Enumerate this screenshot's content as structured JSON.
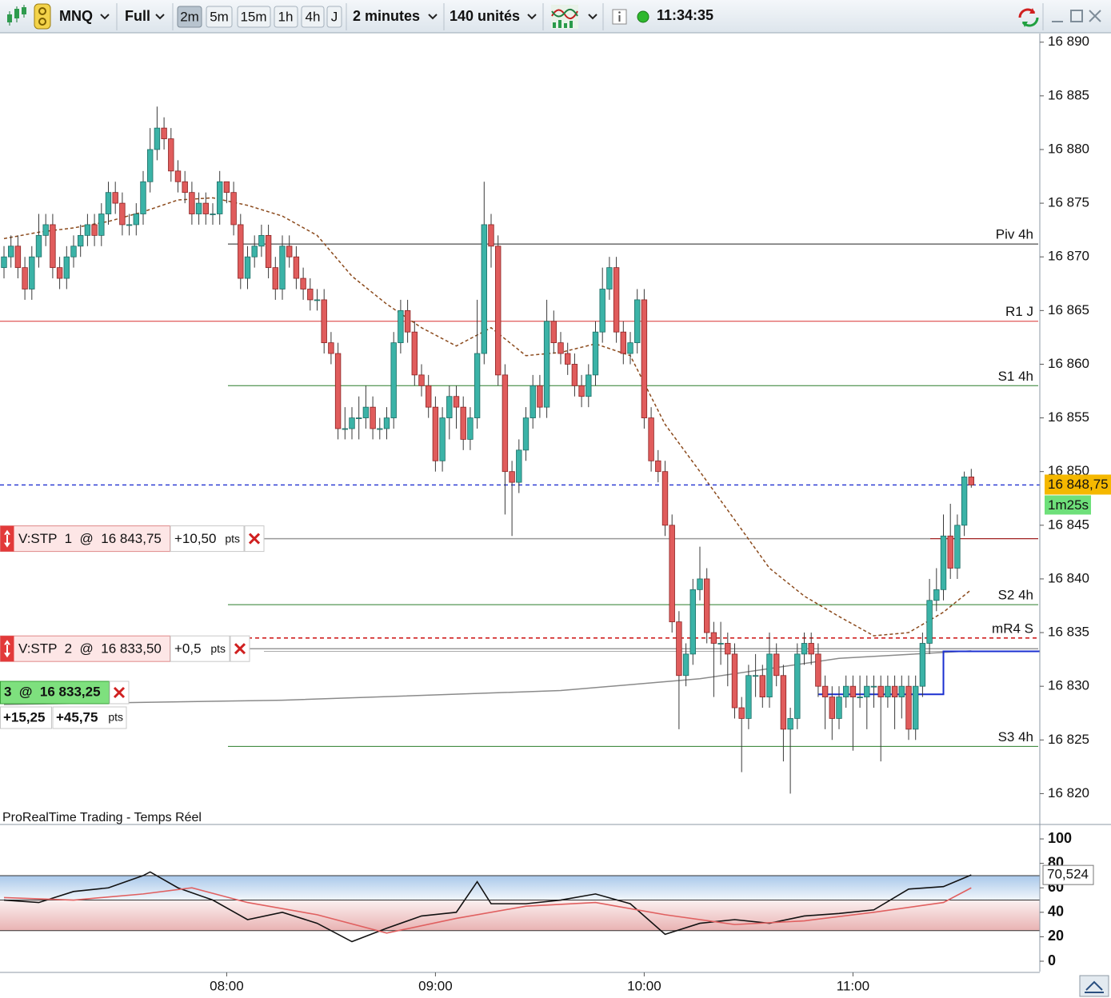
{
  "toolbar": {
    "symbol": "MNQ",
    "view": "Full",
    "timeframes": [
      "2m",
      "5m",
      "15m",
      "1h",
      "4h",
      "J"
    ],
    "period": "2 minutes",
    "units": "140 unités",
    "clock": "11:34:35"
  },
  "source": "ProRealTime Trading - Temps Réel",
  "chart_data": {
    "type": "candlestick",
    "categories": [
      null,
      null,
      null,
      null,
      null,
      null,
      null,
      null,
      null,
      null,
      null,
      null,
      null,
      null,
      null,
      null,
      null,
      null,
      null,
      null,
      null,
      null,
      null,
      null,
      null,
      null,
      null,
      null,
      null,
      null,
      null,
      null,
      "08:00",
      null,
      null,
      null,
      null,
      null,
      null,
      null,
      null,
      null,
      null,
      null,
      null,
      null,
      null,
      null,
      null,
      null,
      null,
      null,
      null,
      null,
      null,
      null,
      null,
      null,
      null,
      null,
      null,
      null,
      "09:00",
      null,
      null,
      null,
      null,
      null,
      null,
      null,
      null,
      null,
      null,
      null,
      null,
      null,
      null,
      null,
      null,
      null,
      null,
      null,
      null,
      null,
      null,
      null,
      null,
      null,
      null,
      null,
      null,
      null,
      "10:00",
      null,
      null,
      null,
      null,
      null,
      null,
      null,
      null,
      null,
      null,
      null,
      null,
      null,
      null,
      null,
      null,
      null,
      null,
      null,
      null,
      null,
      null,
      null,
      null,
      null,
      null,
      null,
      null,
      null,
      "11:00",
      null,
      null,
      null,
      null,
      null,
      null,
      null,
      null,
      null,
      null,
      null,
      null,
      null,
      null,
      null,
      null,
      null
    ],
    "ohlc": [
      [
        16869,
        16871,
        16868,
        16870
      ],
      [
        16870,
        16872,
        16869,
        16871
      ],
      [
        16871,
        16872,
        16868,
        16869
      ],
      [
        16869,
        16870,
        16866,
        16867
      ],
      [
        16867,
        16871,
        16866,
        16870
      ],
      [
        16870,
        16874,
        16869,
        16872
      ],
      [
        16872,
        16874,
        16871,
        16873
      ],
      [
        16873,
        16874,
        16868,
        16869
      ],
      [
        16869,
        16870,
        16867,
        16868
      ],
      [
        16868,
        16871,
        16867,
        16870
      ],
      [
        16870,
        16872,
        16869,
        16871
      ],
      [
        16871,
        16873,
        16870,
        16872
      ],
      [
        16872,
        16874,
        16871,
        16873
      ],
      [
        16873,
        16874,
        16871,
        16872
      ],
      [
        16872,
        16875,
        16871,
        16874
      ],
      [
        16874,
        16877,
        16873,
        16876
      ],
      [
        16876,
        16877,
        16874,
        16875
      ],
      [
        16875,
        16876,
        16872,
        16873
      ],
      [
        16873,
        16874,
        16872,
        16873
      ],
      [
        16873,
        16875,
        16872,
        16874
      ],
      [
        16874,
        16878,
        16873,
        16877
      ],
      [
        16877,
        16882,
        16876,
        16880
      ],
      [
        16880,
        16884,
        16879,
        16882
      ],
      [
        16882,
        16883,
        16880,
        16881
      ],
      [
        16881,
        16882,
        16877,
        16878
      ],
      [
        16878,
        16879,
        16876,
        16877
      ],
      [
        16877,
        16878,
        16875,
        16876
      ],
      [
        16876,
        16877,
        16873,
        16874
      ],
      [
        16874,
        16876,
        16873,
        16875
      ],
      [
        16875,
        16876,
        16873,
        16874
      ],
      [
        16874,
        16875,
        16873,
        16874
      ],
      [
        16874,
        16878,
        16873,
        16877
      ],
      [
        16877,
        16877,
        16875,
        16876
      ],
      [
        16876,
        16877,
        16872,
        16873
      ],
      [
        16873,
        16874,
        16867,
        16868
      ],
      [
        16868,
        16871,
        16867,
        16870
      ],
      [
        16870,
        16872,
        16869,
        16871
      ],
      [
        16871,
        16873,
        16870,
        16872
      ],
      [
        16872,
        16873,
        16868,
        16869
      ],
      [
        16869,
        16870,
        16866,
        16867
      ],
      [
        16867,
        16872,
        16866,
        16871
      ],
      [
        16871,
        16872,
        16869,
        16870
      ],
      [
        16870,
        16871,
        16867,
        16868
      ],
      [
        16868,
        16869,
        16866,
        16867
      ],
      [
        16867,
        16868,
        16865,
        16866
      ],
      [
        16866,
        16867,
        16865,
        16866
      ],
      [
        16866,
        16867,
        16861,
        16862
      ],
      [
        16862,
        16863,
        16860,
        16861
      ],
      [
        16861,
        16862,
        16853,
        16854
      ],
      [
        16854,
        16856,
        16853,
        16854
      ],
      [
        16854,
        16856,
        16853,
        16855
      ],
      [
        16855,
        16857,
        16853,
        16855
      ],
      [
        16855,
        16858,
        16854,
        16856
      ],
      [
        16856,
        16857,
        16853,
        16854
      ],
      [
        16854,
        16855,
        16853,
        16854
      ],
      [
        16854,
        16856,
        16853,
        16855
      ],
      [
        16855,
        16863,
        16854,
        16862
      ],
      [
        16862,
        16866,
        16861,
        16865
      ],
      [
        16865,
        16866,
        16862,
        16863
      ],
      [
        16863,
        16864,
        16858,
        16859
      ],
      [
        16859,
        16860,
        16857,
        16858
      ],
      [
        16858,
        16859,
        16855,
        16856
      ],
      [
        16856,
        16857,
        16850,
        16851
      ],
      [
        16851,
        16856,
        16850,
        16855
      ],
      [
        16855,
        16858,
        16853,
        16857
      ],
      [
        16857,
        16858,
        16854,
        16856
      ],
      [
        16856,
        16857,
        16852,
        16853
      ],
      [
        16853,
        16856,
        16852,
        16855
      ],
      [
        16855,
        16866,
        16854,
        16861
      ],
      [
        16861,
        16877,
        16860,
        16873
      ],
      [
        16873,
        16874,
        16869,
        16871
      ],
      [
        16871,
        16872,
        16858,
        16859
      ],
      [
        16859,
        16860,
        16846,
        16850
      ],
      [
        16850,
        16851,
        16844,
        16849
      ],
      [
        16849,
        16853,
        16848,
        16852
      ],
      [
        16852,
        16856,
        16851,
        16855
      ],
      [
        16855,
        16859,
        16854,
        16858
      ],
      [
        16858,
        16859,
        16855,
        16856
      ],
      [
        16856,
        16866,
        16855,
        16864
      ],
      [
        16864,
        16865,
        16861,
        16862
      ],
      [
        16862,
        16863,
        16860,
        16861
      ],
      [
        16861,
        16862,
        16859,
        16860
      ],
      [
        16860,
        16861,
        16857,
        16858
      ],
      [
        16858,
        16859,
        16856,
        16857
      ],
      [
        16857,
        16860,
        16856,
        16859
      ],
      [
        16859,
        16864,
        16858,
        16863
      ],
      [
        16863,
        16869,
        16862,
        16867
      ],
      [
        16867,
        16870,
        16866,
        16869
      ],
      [
        16869,
        16870,
        16862,
        16863
      ],
      [
        16863,
        16864,
        16860,
        16861
      ],
      [
        16861,
        16863,
        16860,
        16862
      ],
      [
        16862,
        16867,
        16861,
        16866
      ],
      [
        16866,
        16867,
        16854,
        16855
      ],
      [
        16855,
        16856,
        16850,
        16851
      ],
      [
        16851,
        16852,
        16849,
        16850
      ],
      [
        16850,
        16851,
        16844,
        16845
      ],
      [
        16845,
        16846,
        16835,
        16836
      ],
      [
        16836,
        16837,
        16826,
        16831
      ],
      [
        16831,
        16834,
        16830,
        16833
      ],
      [
        16833,
        16840,
        16832,
        16839
      ],
      [
        16839,
        16843,
        16838,
        16840
      ],
      [
        16840,
        16841,
        16834,
        16835
      ],
      [
        16835,
        16836,
        16829,
        16834
      ],
      [
        16834,
        16836,
        16832,
        16834
      ],
      [
        16834,
        16835,
        16830,
        16833
      ],
      [
        16833,
        16834,
        16827,
        16828
      ],
      [
        16828,
        16829,
        16822,
        16827
      ],
      [
        16827,
        16832,
        16826,
        16831
      ],
      [
        16831,
        16833,
        16829,
        16831
      ],
      [
        16831,
        16832,
        16828,
        16829
      ],
      [
        16829,
        16835,
        16828,
        16833
      ],
      [
        16833,
        16834,
        16830,
        16831
      ],
      [
        16831,
        16832,
        16823,
        16826
      ],
      [
        16826,
        16828,
        16820,
        16827
      ],
      [
        16827,
        16834,
        16826,
        16833
      ],
      [
        16833,
        16835,
        16832,
        16834
      ],
      [
        16834,
        16835,
        16832,
        16833
      ],
      [
        16833,
        16834,
        16829,
        16830
      ],
      [
        16830,
        16831,
        16826,
        16829
      ],
      [
        16829,
        16830,
        16825,
        16827
      ],
      [
        16827,
        16830,
        16826,
        16829
      ],
      [
        16829,
        16831,
        16828,
        16830
      ],
      [
        16830,
        16831,
        16824,
        16829
      ],
      [
        16829,
        16831,
        16828,
        16829
      ],
      [
        16829,
        16831,
        16826,
        16830
      ],
      [
        16830,
        16831,
        16828,
        16830
      ],
      [
        16830,
        16831,
        16823,
        16829
      ],
      [
        16829,
        16831,
        16828,
        16830
      ],
      [
        16830,
        16831,
        16826,
        16829
      ],
      [
        16829,
        16831,
        16827,
        16830
      ],
      [
        16830,
        16831,
        16825,
        16826
      ],
      [
        16826,
        16831,
        16825,
        16830
      ],
      [
        16830,
        16835,
        16829,
        16834
      ],
      [
        16834,
        16840,
        16833,
        16838
      ],
      [
        16838,
        16841,
        16837,
        16839
      ],
      [
        16839,
        16846,
        16838,
        16844
      ],
      [
        16844,
        16847,
        16840,
        16841
      ],
      [
        16841,
        16846,
        16840,
        16845
      ],
      [
        16845,
        16850,
        16844,
        16849.5
      ],
      [
        16849.5,
        16850.25,
        16848.5,
        16848.75
      ]
    ],
    "close_label": "16 848,75",
    "countdown": "1m25s",
    "up_color": "#3bb3a7",
    "down_color": "#e05c5c",
    "ylim": [
      16817.2,
      16890.8
    ],
    "yticks": [
      {
        "value": 16820,
        "label": "16 820"
      },
      {
        "value": 16825,
        "label": "16 825"
      },
      {
        "value": 16830,
        "label": "16 830"
      },
      {
        "value": 16835,
        "label": "16 835"
      },
      {
        "value": 16840,
        "label": "16 840"
      },
      {
        "value": 16845,
        "label": "16 845"
      },
      {
        "value": 16850,
        "label": "16 850"
      },
      {
        "value": 16855,
        "label": "16 855"
      },
      {
        "value": 16860,
        "label": "16 860"
      },
      {
        "value": 16865,
        "label": "16 865"
      },
      {
        "value": 16870,
        "label": "16 870"
      },
      {
        "value": 16875,
        "label": "16 875"
      },
      {
        "value": 16880,
        "label": "16 880"
      },
      {
        "value": 16885,
        "label": "16 885"
      },
      {
        "value": 16890,
        "label": "16 890"
      }
    ],
    "levels": [
      {
        "label": "Piv 4h",
        "value": 16871.2,
        "color": "#222222"
      },
      {
        "label": "R1 J",
        "value": 16864,
        "color": "#d83030"
      },
      {
        "label": "S1 4h",
        "value": 16858,
        "color": "#2a7d2a"
      },
      {
        "label": "S2 4h",
        "value": 16837.6,
        "color": "#2a7d2a"
      },
      {
        "label": "mR4 S",
        "value": 16834.5,
        "color": "#d02020",
        "dashed": true
      },
      {
        "label": "S3 4h",
        "value": 16824.4,
        "color": "#2a7d2a"
      }
    ],
    "lines": [
      {
        "color": "#8b4a1c",
        "dashed": true,
        "x": [
          0,
          5,
          10,
          15,
          20,
          25,
          30,
          35,
          40,
          45,
          50,
          55,
          60,
          65,
          70,
          75,
          80,
          85,
          90,
          95,
          100,
          105,
          110,
          115,
          120,
          125,
          130,
          135,
          139
        ],
        "values": [
          16871.7,
          16872.3,
          16872.7,
          16873.3,
          16874.2,
          16875.3,
          16875.5,
          16874.8,
          16873.8,
          16872,
          16868.2,
          16865.6,
          16863.4,
          16861.7,
          16863.4,
          16860.8,
          16861.1,
          16861.9,
          16860.8,
          16854.4,
          16850,
          16845.5,
          16841,
          16838.4,
          16836.5,
          16834.7,
          16835,
          16836.9,
          16839
        ]
      },
      {
        "color": "#8a8a8a",
        "x": [
          0,
          40,
          80,
          100,
          120,
          139
        ],
        "values": [
          16828.3,
          16828.7,
          16829.6,
          16830.7,
          16832.6,
          16833.3
        ]
      },
      {
        "color": "#1a2fd0",
        "x": [
          117,
          135,
          135,
          148.9
        ],
        "values": [
          16829.25,
          16829.25,
          16833.25,
          16833.25
        ]
      }
    ],
    "orders": [
      {
        "label": "V:STP  1  @  16 843,75",
        "price": 16843.75,
        "pnl": "+10,50",
        "unit": "pts"
      },
      {
        "label": "V:STP  2  @  16 833,50",
        "price": 16833.5,
        "pnl": "+0,5",
        "unit": "pts"
      }
    ],
    "position": {
      "label": "3  @  16 833,25",
      "price": 16833.25,
      "pnl": [
        "+15,25",
        "+45,75"
      ],
      "unit": "pts"
    },
    "rsi": {
      "ylim": [
        -8.5,
        110.5
      ],
      "yticks": [
        0,
        20,
        40,
        60,
        80,
        100
      ],
      "levels": [
        70,
        50,
        25
      ],
      "lines": [
        {
          "color": "#111111",
          "x": [
            0,
            5,
            10,
            15,
            20,
            21,
            25,
            30,
            35,
            40,
            45,
            50,
            55,
            60,
            65,
            68,
            70,
            75,
            80,
            85,
            90,
            95,
            100,
            105,
            110,
            115,
            120,
            125,
            130,
            135,
            139
          ],
          "values": [
            50,
            48,
            57,
            60,
            70,
            73,
            60,
            50,
            34,
            40,
            31,
            16,
            27,
            37,
            40,
            65,
            47,
            47,
            50,
            55,
            47,
            22,
            31,
            34,
            31,
            37,
            39,
            42,
            59,
            61,
            70.524
          ],
          "value_labels": [
            null,
            null,
            null,
            null,
            null,
            null,
            null,
            null,
            null,
            null,
            null,
            null,
            null,
            null,
            null,
            null,
            null,
            null,
            null,
            null,
            null,
            null,
            null,
            null,
            null,
            null,
            null,
            null,
            null,
            null,
            "70,524"
          ]
        },
        {
          "color": "#e06060",
          "x": [
            0,
            10,
            20,
            27,
            35,
            45,
            55,
            65,
            75,
            85,
            95,
            105,
            115,
            125,
            135,
            139
          ],
          "values": [
            52,
            50,
            55,
            60,
            48,
            38,
            23,
            35,
            45,
            48,
            38,
            30,
            33,
            40,
            48,
            60
          ]
        }
      ]
    }
  }
}
